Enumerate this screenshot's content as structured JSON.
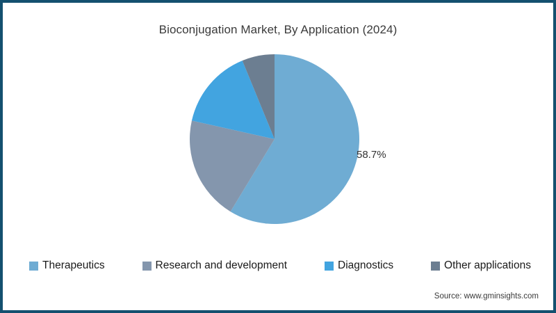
{
  "source": "Source: www.gminsights.com",
  "colors": {
    "frame_border": "#14506F",
    "title_text": "#3A3A3A",
    "legend_text": "#1A1A1A"
  },
  "chart_data": {
    "type": "pie",
    "title": "Bioconjugation Market, By Application (2024)",
    "start_angle_deg": 0,
    "direction": "clockwise",
    "legend_position": "bottom",
    "slices": [
      {
        "label": "Therapeutics",
        "value": 58.7,
        "color": "#6FACD3",
        "data_label": "58.7%"
      },
      {
        "label": "Research and development",
        "value": 19.8,
        "color": "#8496AD",
        "data_label": null
      },
      {
        "label": "Diagnostics",
        "value": 15.3,
        "color": "#42A4E0",
        "data_label": null
      },
      {
        "label": "Other applications",
        "value": 6.2,
        "color": "#6C7E91",
        "data_label": null
      }
    ]
  }
}
